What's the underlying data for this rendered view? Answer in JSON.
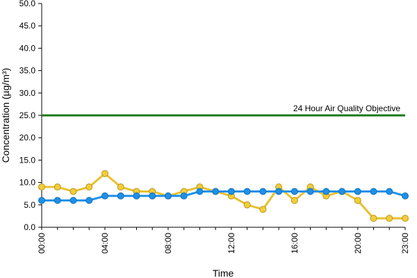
{
  "chart_data": {
    "type": "line",
    "xlabel": "Time",
    "ylabel": "Concentration (µg/m³)",
    "ylim": [
      0,
      50
    ],
    "y_ticks": [
      "0.0",
      "5.0",
      "10.0",
      "15.0",
      "20.0",
      "25.0",
      "30.0",
      "35.0",
      "40.0",
      "45.0",
      "50.0"
    ],
    "x_ticks": [
      "00:00",
      "04:00",
      "08:00",
      "12:00",
      "16:00",
      "20:00",
      "23:00"
    ],
    "x": [
      "00:00",
      "01:00",
      "02:00",
      "03:00",
      "04:00",
      "05:00",
      "06:00",
      "07:00",
      "08:00",
      "09:00",
      "10:00",
      "11:00",
      "12:00",
      "13:00",
      "14:00",
      "15:00",
      "16:00",
      "17:00",
      "18:00",
      "19:00",
      "20:00",
      "21:00",
      "22:00",
      "23:00"
    ],
    "grid": false,
    "reference_line": {
      "label": "24 Hour Air Quality Objective",
      "value": 25,
      "color": "#1a7a1a"
    },
    "series": [
      {
        "color": "#e8c030",
        "marker_fill": "#f2cd3a",
        "marker_stroke": "#b8961a",
        "values": [
          9,
          9,
          8,
          9,
          12,
          9,
          8,
          8,
          7,
          8,
          9,
          8,
          7,
          5,
          4,
          9,
          6,
          9,
          7,
          8,
          6,
          2,
          2,
          2
        ]
      },
      {
        "color": "#1e90e8",
        "marker_fill": "#1e90e8",
        "marker_stroke": "#1470b8",
        "values": [
          6,
          6,
          6,
          6,
          7,
          7,
          7,
          7,
          7,
          7,
          8,
          8,
          8,
          8,
          8,
          8,
          8,
          8,
          8,
          8,
          8,
          8,
          8,
          7
        ]
      }
    ]
  }
}
